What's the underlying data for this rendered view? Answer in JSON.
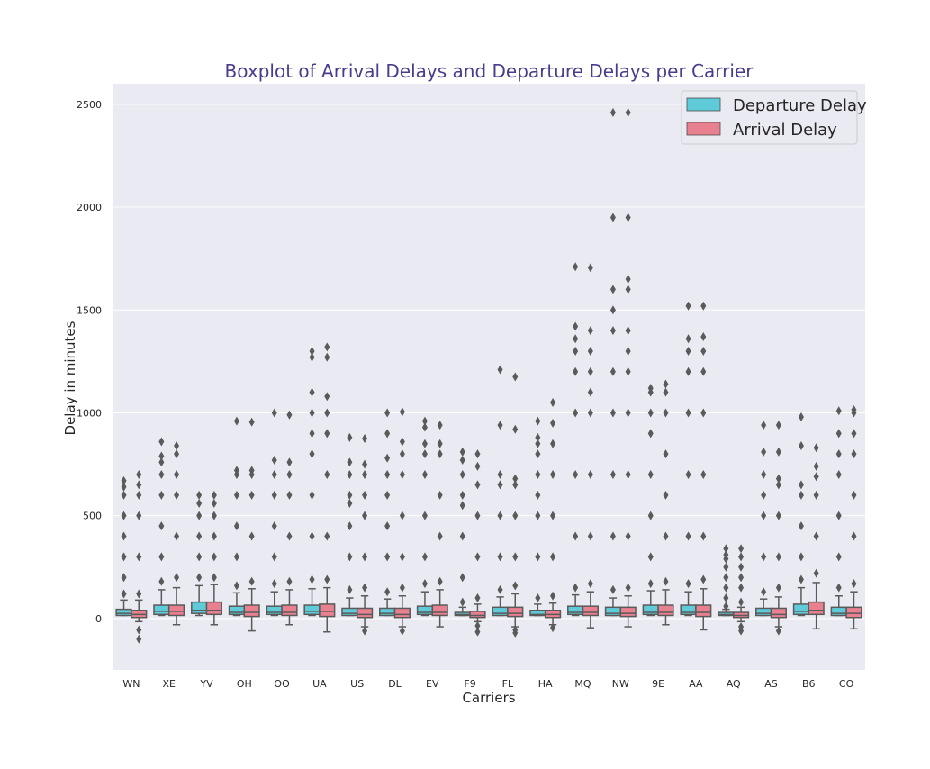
{
  "chart_data": {
    "type": "boxplot",
    "title": "Boxplot of Arrival Delays and Departure Delays per Carrier",
    "xlabel": "Carriers",
    "ylabel": "Delay in minutes",
    "ylim": [
      -250,
      2600
    ],
    "yticks": [
      0,
      500,
      1000,
      1500,
      2000,
      2500
    ],
    "grid": true,
    "legend_position": "top-right",
    "categories": [
      "WN",
      "XE",
      "YV",
      "OH",
      "OO",
      "UA",
      "US",
      "DL",
      "EV",
      "F9",
      "FL",
      "HA",
      "MQ",
      "NW",
      "9E",
      "AA",
      "AQ",
      "AS",
      "B6",
      "CO"
    ],
    "series": [
      {
        "name": "Departure Delay",
        "color": "#5fcbd8",
        "boxes": [
          {
            "whislo": 15,
            "q1": 15,
            "med": 25,
            "q3": 45,
            "whishi": 90,
            "fliers": [
              120,
              200,
              300,
              400,
              500,
              600,
              640,
              670
            ]
          },
          {
            "whislo": 15,
            "q1": 20,
            "med": 35,
            "q3": 65,
            "whishi": 140,
            "fliers": [
              180,
              300,
              450,
              600,
              700,
              760,
              790,
              860
            ]
          },
          {
            "whislo": 15,
            "q1": 25,
            "med": 40,
            "q3": 80,
            "whishi": 160,
            "fliers": [
              200,
              300,
              400,
              500,
              560,
              600
            ]
          },
          {
            "whislo": 15,
            "q1": 20,
            "med": 30,
            "q3": 60,
            "whishi": 125,
            "fliers": [
              160,
              300,
              450,
              600,
              700,
              720,
              960
            ]
          },
          {
            "whislo": 15,
            "q1": 20,
            "med": 30,
            "q3": 60,
            "whishi": 130,
            "fliers": [
              170,
              300,
              450,
              600,
              700,
              770,
              1000
            ]
          },
          {
            "whislo": 15,
            "q1": 20,
            "med": 35,
            "q3": 65,
            "whishi": 145,
            "fliers": [
              190,
              400,
              600,
              800,
              900,
              1000,
              1100,
              1270,
              1300
            ]
          },
          {
            "whislo": 15,
            "q1": 15,
            "med": 25,
            "q3": 50,
            "whishi": 100,
            "fliers": [
              140,
              300,
              450,
              560,
              600,
              700,
              760,
              880
            ]
          },
          {
            "whislo": 15,
            "q1": 15,
            "med": 25,
            "q3": 50,
            "whishi": 95,
            "fliers": [
              130,
              300,
              450,
              600,
              700,
              780,
              900,
              1000
            ]
          },
          {
            "whislo": 15,
            "q1": 20,
            "med": 30,
            "q3": 60,
            "whishi": 130,
            "fliers": [
              170,
              300,
              500,
              700,
              800,
              850,
              930,
              960
            ]
          },
          {
            "whislo": 15,
            "q1": 15,
            "med": 20,
            "q3": 30,
            "whishi": 55,
            "fliers": [
              80,
              200,
              400,
              550,
              600,
              700,
              770,
              810
            ]
          },
          {
            "whislo": 15,
            "q1": 15,
            "med": 25,
            "q3": 55,
            "whishi": 105,
            "fliers": [
              140,
              300,
              500,
              650,
              700,
              940,
              1210
            ]
          },
          {
            "whislo": 15,
            "q1": 15,
            "med": 20,
            "q3": 40,
            "whishi": 70,
            "fliers": [
              100,
              300,
              500,
              600,
              700,
              800,
              850,
              880,
              960
            ]
          },
          {
            "whislo": 15,
            "q1": 20,
            "med": 30,
            "q3": 60,
            "whishi": 115,
            "fliers": [
              150,
              400,
              700,
              1000,
              1200,
              1300,
              1360,
              1420,
              1710
            ]
          },
          {
            "whislo": 15,
            "q1": 15,
            "med": 25,
            "q3": 55,
            "whishi": 100,
            "fliers": [
              140,
              400,
              700,
              1000,
              1200,
              1400,
              1500,
              1600,
              1950,
              2460
            ]
          },
          {
            "whislo": 15,
            "q1": 20,
            "med": 30,
            "q3": 65,
            "whishi": 135,
            "fliers": [
              170,
              300,
              500,
              700,
              900,
              1000,
              1100,
              1120
            ]
          },
          {
            "whislo": 15,
            "q1": 20,
            "med": 30,
            "q3": 65,
            "whishi": 130,
            "fliers": [
              170,
              400,
              700,
              1000,
              1200,
              1300,
              1360,
              1520
            ]
          },
          {
            "whislo": 15,
            "q1": 15,
            "med": 20,
            "q3": 30,
            "whishi": 45,
            "fliers": [
              60,
              100,
              150,
              200,
              250,
              290,
              310,
              340
            ]
          },
          {
            "whislo": 15,
            "q1": 15,
            "med": 25,
            "q3": 50,
            "whishi": 95,
            "fliers": [
              130,
              300,
              500,
              600,
              700,
              810,
              940
            ]
          },
          {
            "whislo": 15,
            "q1": 20,
            "med": 35,
            "q3": 70,
            "whishi": 150,
            "fliers": [
              190,
              300,
              450,
              600,
              650,
              840,
              980
            ]
          },
          {
            "whislo": 15,
            "q1": 15,
            "med": 25,
            "q3": 55,
            "whishi": 110,
            "fliers": [
              150,
              300,
              500,
              700,
              800,
              900,
              1010
            ]
          }
        ]
      },
      {
        "name": "Arrival Delay",
        "color": "#e8808f",
        "boxes": [
          {
            "whislo": -15,
            "q1": 5,
            "med": 20,
            "q3": 40,
            "whishi": 90,
            "fliers": [
              -55,
              -100,
              120,
              300,
              500,
              600,
              650,
              700
            ]
          },
          {
            "whislo": -30,
            "q1": 15,
            "med": 35,
            "q3": 65,
            "whishi": 150,
            "fliers": [
              200,
              400,
              600,
              700,
              800,
              840
            ]
          },
          {
            "whislo": -30,
            "q1": 20,
            "med": 40,
            "q3": 80,
            "whishi": 165,
            "fliers": [
              200,
              300,
              400,
              500,
              560,
              600
            ]
          },
          {
            "whislo": -60,
            "q1": 10,
            "med": 30,
            "q3": 65,
            "whishi": 145,
            "fliers": [
              180,
              400,
              600,
              700,
              720,
              955
            ]
          },
          {
            "whislo": -30,
            "q1": 15,
            "med": 30,
            "q3": 65,
            "whishi": 140,
            "fliers": [
              180,
              400,
              600,
              700,
              760,
              990
            ]
          },
          {
            "whislo": -65,
            "q1": 10,
            "med": 35,
            "q3": 70,
            "whishi": 150,
            "fliers": [
              190,
              400,
              700,
              900,
              1000,
              1080,
              1270,
              1320
            ]
          },
          {
            "whislo": -40,
            "q1": 5,
            "med": 20,
            "q3": 50,
            "whishi": 110,
            "fliers": [
              -60,
              150,
              300,
              500,
              600,
              700,
              750,
              875
            ]
          },
          {
            "whislo": -40,
            "q1": 5,
            "med": 20,
            "q3": 50,
            "whishi": 110,
            "fliers": [
              -60,
              150,
              300,
              500,
              700,
              800,
              860,
              1005
            ]
          },
          {
            "whislo": -40,
            "q1": 15,
            "med": 30,
            "q3": 65,
            "whishi": 140,
            "fliers": [
              180,
              400,
              600,
              800,
              850,
              940
            ]
          },
          {
            "whislo": -15,
            "q1": 5,
            "med": 15,
            "q3": 35,
            "whishi": 70,
            "fliers": [
              -35,
              -65,
              100,
              300,
              500,
              650,
              740,
              800
            ]
          },
          {
            "whislo": -40,
            "q1": 10,
            "med": 25,
            "q3": 55,
            "whishi": 120,
            "fliers": [
              -55,
              -70,
              160,
              300,
              500,
              650,
              680,
              920,
              1175
            ]
          },
          {
            "whislo": -30,
            "q1": 5,
            "med": 20,
            "q3": 40,
            "whishi": 75,
            "fliers": [
              -45,
              110,
              300,
              500,
              700,
              850,
              950,
              1050
            ]
          },
          {
            "whislo": -45,
            "q1": 15,
            "med": 30,
            "q3": 60,
            "whishi": 130,
            "fliers": [
              170,
              400,
              700,
              1000,
              1100,
              1200,
              1300,
              1400,
              1705
            ]
          },
          {
            "whislo": -40,
            "q1": 10,
            "med": 25,
            "q3": 55,
            "whishi": 110,
            "fliers": [
              150,
              400,
              700,
              1000,
              1200,
              1300,
              1400,
              1600,
              1650,
              1950,
              2460
            ]
          },
          {
            "whislo": -30,
            "q1": 15,
            "med": 30,
            "q3": 65,
            "whishi": 140,
            "fliers": [
              180,
              400,
              600,
              800,
              1000,
              1100,
              1140
            ]
          },
          {
            "whislo": -55,
            "q1": 10,
            "med": 30,
            "q3": 65,
            "whishi": 145,
            "fliers": [
              190,
              400,
              700,
              1000,
              1200,
              1300,
              1370,
              1520
            ]
          },
          {
            "whislo": -15,
            "q1": 5,
            "med": 15,
            "q3": 30,
            "whishi": 55,
            "fliers": [
              -40,
              -60,
              80,
              150,
              200,
              250,
              300,
              340
            ]
          },
          {
            "whislo": -40,
            "q1": 5,
            "med": 20,
            "q3": 50,
            "whishi": 105,
            "fliers": [
              -60,
              150,
              300,
              500,
              650,
              680,
              810,
              940
            ]
          },
          {
            "whislo": -50,
            "q1": 20,
            "med": 40,
            "q3": 80,
            "whishi": 175,
            "fliers": [
              220,
              400,
              600,
              690,
              740,
              830
            ]
          },
          {
            "whislo": -50,
            "q1": 5,
            "med": 25,
            "q3": 55,
            "whishi": 130,
            "fliers": [
              170,
              400,
              600,
              800,
              900,
              1000,
              1015
            ]
          }
        ]
      }
    ]
  }
}
